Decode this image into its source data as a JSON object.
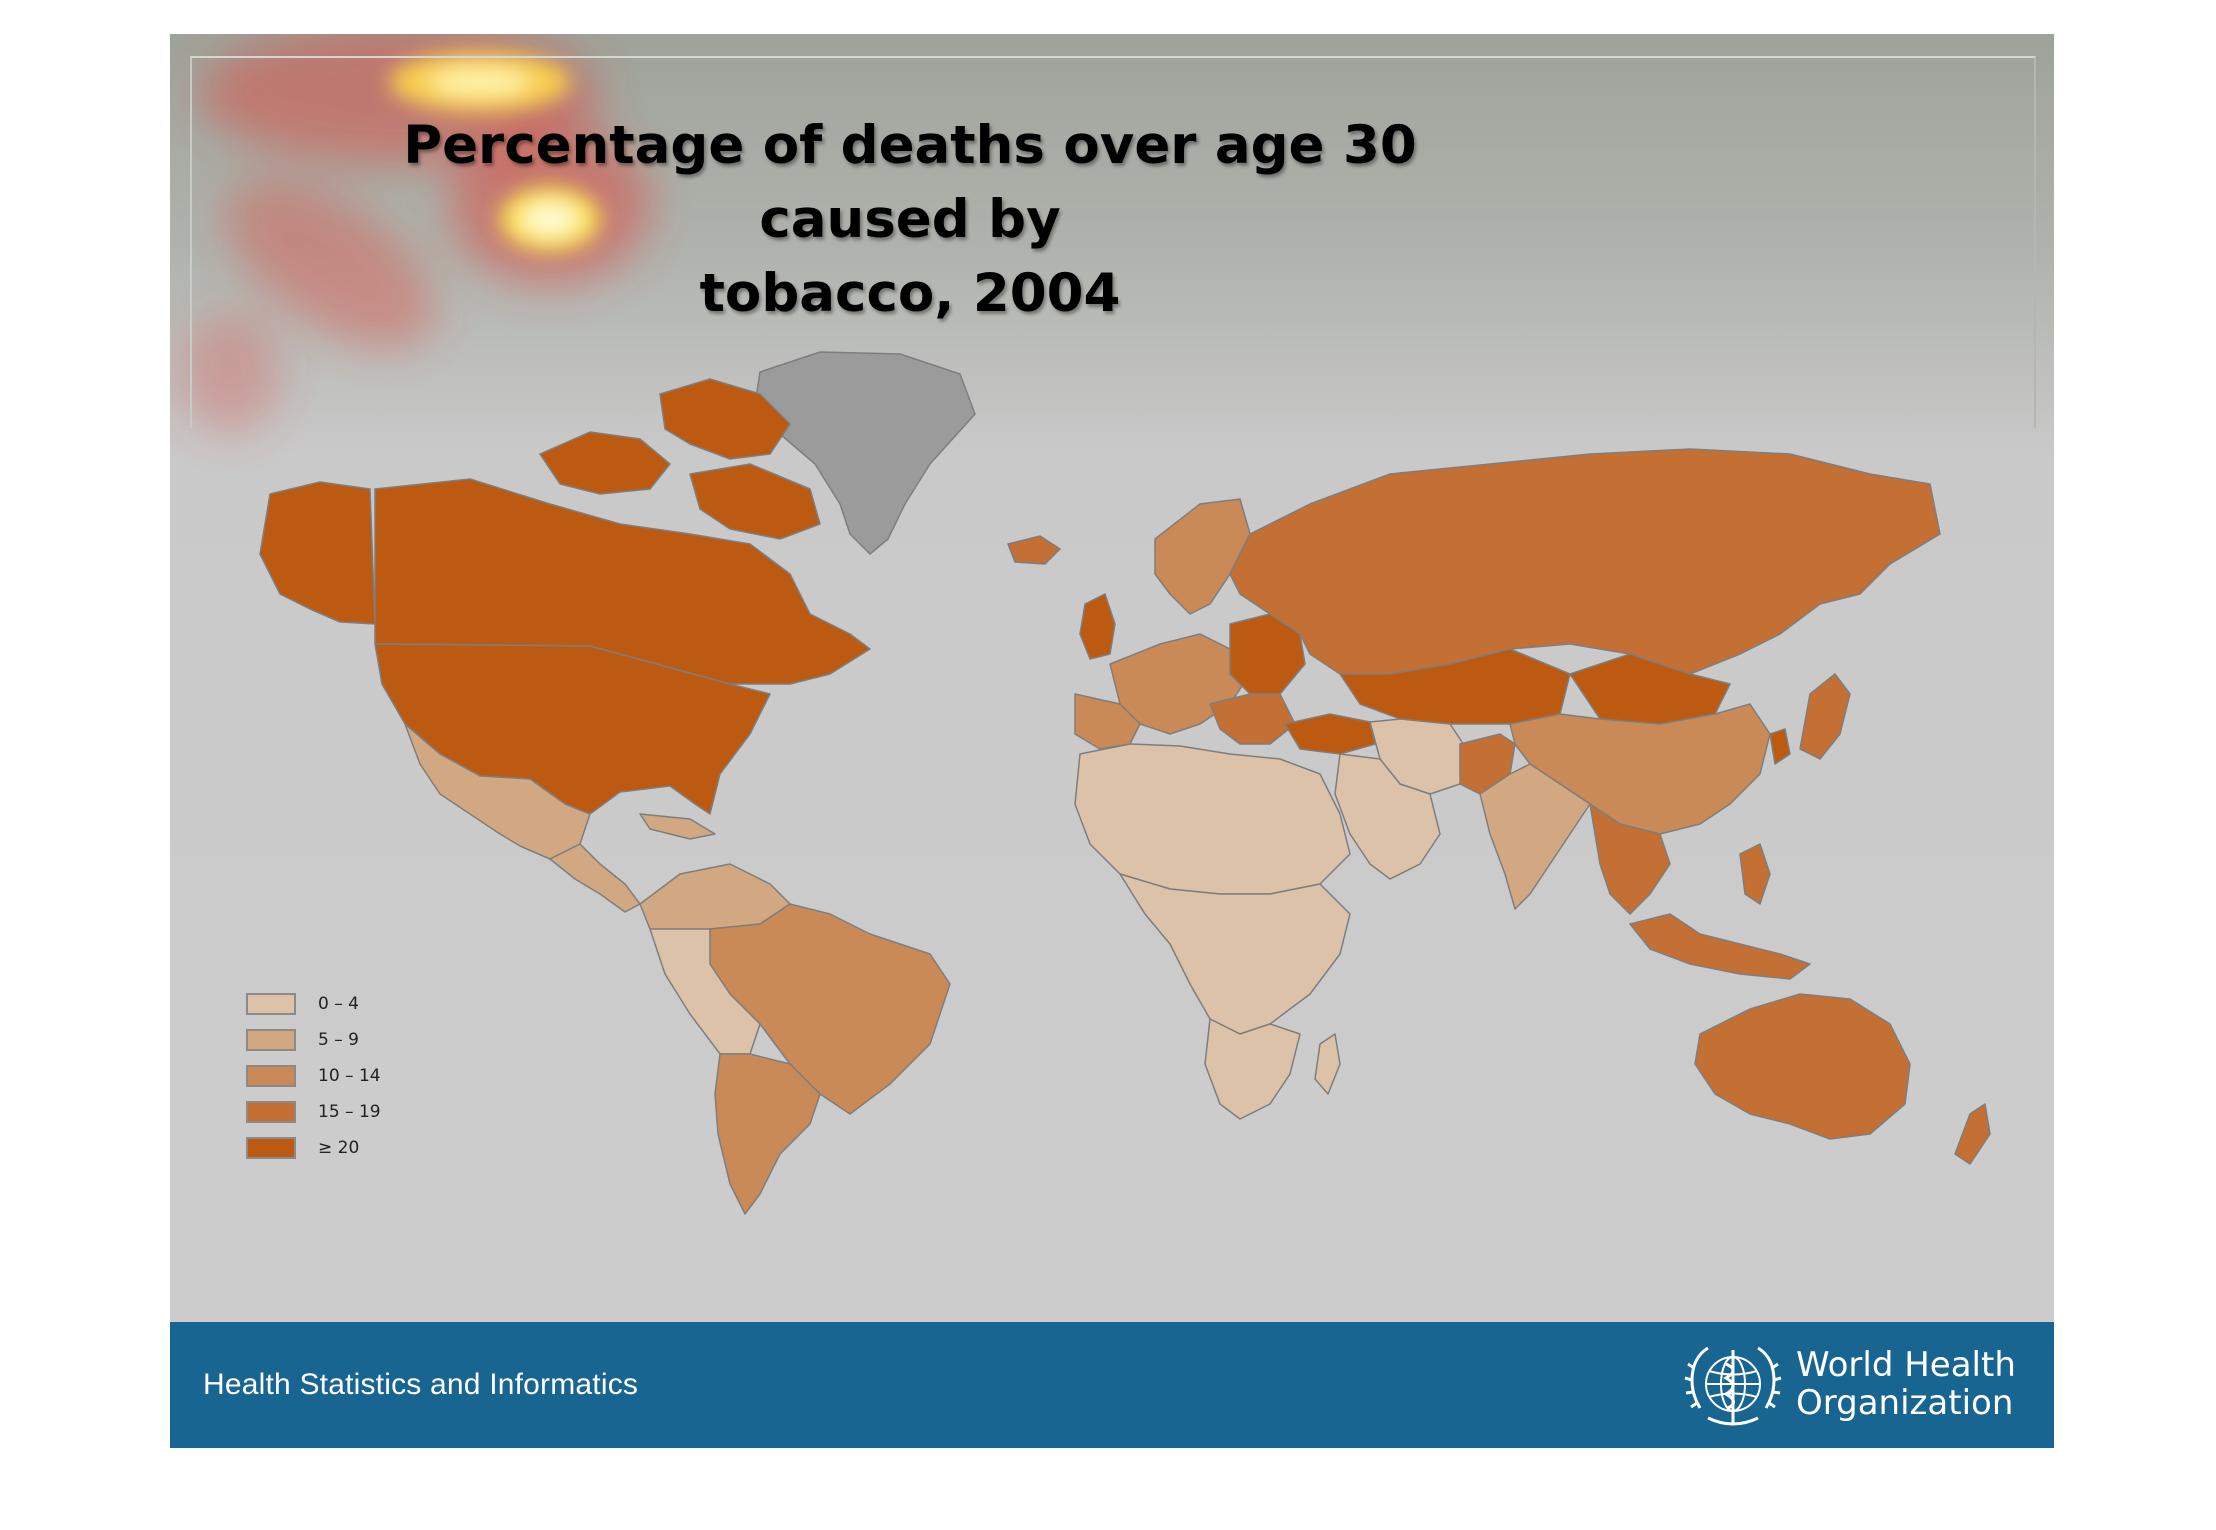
{
  "slide": {
    "title_line1": "Percentage of deaths over age 30 caused by",
    "title_line2": "tobacco, 2004"
  },
  "legend": {
    "items": [
      {
        "label": "0 – 4",
        "color": "#dcc2a8"
      },
      {
        "label": "5 – 9",
        "color": "#d2a882"
      },
      {
        "label": "10 – 14",
        "color": "#c98a58"
      },
      {
        "label": "15 – 19",
        "color": "#c46f33"
      },
      {
        "label": "≥ 20",
        "color": "#bd5a12"
      }
    ],
    "no_data_color": "#9b9b9b"
  },
  "map": {
    "ocean_color": "#cdcdcd",
    "border_color": "#7e7e7e"
  },
  "footer": {
    "left_text": "Health Statistics and Informatics",
    "org_line1": "World Health",
    "org_line2": "Organization",
    "background": "#186592"
  },
  "icons": {
    "emblem": "who-emblem-icon"
  }
}
